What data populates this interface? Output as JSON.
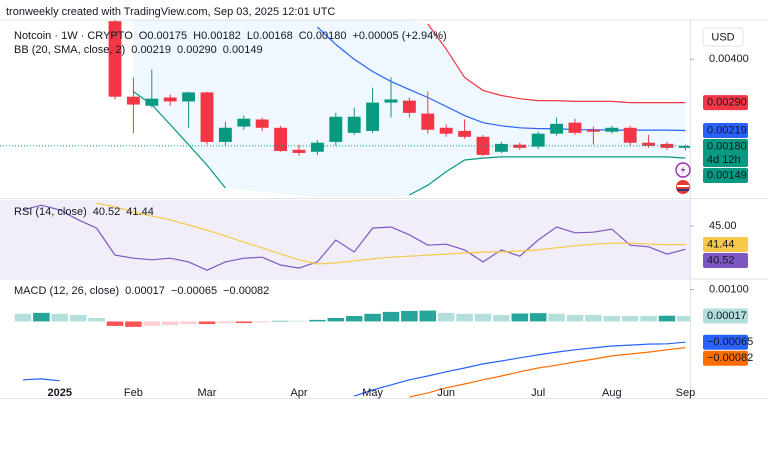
{
  "header": "tronweekly created with TradingView.com, Sep 03, 2025 12:01 UTC",
  "currency": "USD",
  "countdown": "4d 12h",
  "x_axis": {
    "categories": [
      null,
      null,
      null,
      null,
      null,
      null,
      null,
      null,
      null,
      null,
      null,
      null,
      null,
      null,
      null,
      null,
      null,
      null,
      null,
      null,
      null,
      null,
      null,
      null,
      null,
      null,
      null,
      null,
      null,
      null,
      null,
      null,
      null,
      null,
      null,
      null,
      null,
      null
    ],
    "xlim": [
      -0.25,
      37.25
    ],
    "xticks": [
      {
        "value": 3,
        "label": "2025"
      },
      {
        "value": 7,
        "label": "Feb"
      },
      {
        "value": 11,
        "label": "Mar"
      },
      {
        "value": 16,
        "label": "Apr"
      },
      {
        "value": 20,
        "label": "May"
      },
      {
        "value": 24,
        "label": "Jun"
      },
      {
        "value": 29,
        "label": "Jul"
      },
      {
        "value": 33,
        "label": "Aug"
      },
      {
        "value": 37,
        "label": "Sep"
      }
    ]
  },
  "chart_data": [
    {
      "type": "candlestick",
      "title": "Notcoin · 1W · CRYPTO",
      "ohlc_legend": [
        "O0.00175",
        "H0.00182",
        "L0.00168",
        "C0.00180",
        "+0.00005 (+2.94%)"
      ],
      "indicator": "BB (20, SMA, close, 2)",
      "up_color": "#089981",
      "down_color": "#f23645",
      "open": [
        null,
        null,
        null,
        null,
        null,
        null,
        0.00497,
        0.00305,
        0.00282,
        0.00303,
        0.00293,
        0.00316,
        0.0019,
        0.00229,
        0.00247,
        0.00226,
        0.0017,
        0.00165,
        0.0019,
        0.00213,
        0.00218,
        0.0029,
        0.00295,
        0.00262,
        0.00226,
        0.00218,
        0.00203,
        0.00165,
        0.00183,
        0.00178,
        0.00211,
        0.00239,
        0.00221,
        0.00216,
        0.00226,
        0.00188,
        0.00185,
        0.00175
      ],
      "high": [
        null,
        null,
        null,
        null,
        null,
        null,
        0.00508,
        0.00354,
        0.00374,
        0.00311,
        0.00318,
        0.00318,
        0.00241,
        0.00257,
        0.00252,
        0.00231,
        0.00183,
        0.00195,
        0.00264,
        0.00277,
        0.00328,
        0.00354,
        0.00303,
        0.00318,
        0.00234,
        0.00247,
        0.00208,
        0.0019,
        0.00188,
        0.00216,
        0.00252,
        0.00249,
        0.00229,
        0.00231,
        0.00231,
        0.00208,
        0.0019,
        0.00182
      ],
      "low": [
        null,
        null,
        null,
        null,
        null,
        null,
        0.00298,
        0.00213,
        0.00277,
        0.00282,
        0.00226,
        0.00183,
        0.0018,
        0.00221,
        0.00218,
        0.00165,
        0.00155,
        0.00157,
        0.0018,
        0.00208,
        0.00213,
        0.00252,
        0.00252,
        0.00211,
        0.00203,
        0.00198,
        0.00155,
        0.00162,
        0.0017,
        0.00172,
        0.00206,
        0.00208,
        0.00183,
        0.00211,
        0.0018,
        0.00175,
        0.0017,
        0.00168
      ],
      "close": [
        null,
        null,
        null,
        null,
        null,
        null,
        0.00305,
        0.00285,
        0.003,
        0.00293,
        0.00316,
        0.0019,
        0.00226,
        0.00249,
        0.00226,
        0.00167,
        0.00162,
        0.00188,
        0.00254,
        0.00254,
        0.0029,
        0.00298,
        0.00264,
        0.00221,
        0.00211,
        0.00203,
        0.00157,
        0.00185,
        0.00175,
        0.00211,
        0.00236,
        0.00213,
        0.00216,
        0.00226,
        0.00188,
        0.0018,
        0.00175,
        0.0018
      ],
      "close_label": "0.00180",
      "ylim": [
        0.0005,
        0.005
      ],
      "yticks": [
        {
          "value": 0.004,
          "label": "0.00400"
        }
      ],
      "series": [
        {
          "color": "#2962ff",
          "last_label": "0.00219",
          "values": [
            null,
            null,
            null,
            null,
            null,
            null,
            null,
            null,
            null,
            null,
            null,
            null,
            null,
            null,
            null,
            null,
            null,
            0.00482,
            0.00438,
            0.004,
            0.00369,
            0.00344,
            0.00323,
            0.00303,
            0.0028,
            0.00257,
            0.00239,
            0.00231,
            0.00226,
            0.00224,
            0.00224,
            0.00221,
            0.00221,
            0.0022,
            0.0022,
            0.0022,
            0.0022,
            0.00219
          ]
        },
        {
          "color": "#f23645",
          "last_label": "0.00290",
          "values": [
            null,
            null,
            null,
            null,
            null,
            null,
            null,
            null,
            null,
            null,
            null,
            null,
            null,
            null,
            null,
            null,
            null,
            null,
            null,
            null,
            null,
            null,
            null,
            0.0049,
            0.00426,
            0.00354,
            0.00321,
            0.00308,
            0.003,
            0.00295,
            0.00295,
            0.00293,
            0.00293,
            0.00293,
            0.0029,
            0.0029,
            0.0029,
            0.0029
          ]
        },
        {
          "color": "#089981",
          "last_label": "0.00149",
          "values": [
            null,
            null,
            null,
            null,
            null,
            null,
            null,
            0.00318,
            0.00285,
            0.00234,
            0.00183,
            0.00131,
            0.00073,
            null,
            null,
            null,
            null,
            null,
            null,
            null,
            null,
            null,
            0.00055,
            0.0008,
            0.00114,
            0.00144,
            0.00149,
            0.00152,
            0.00152,
            0.00152,
            0.00152,
            0.00152,
            0.00152,
            0.00152,
            0.00152,
            0.00152,
            0.00152,
            0.00149
          ]
        }
      ]
    },
    {
      "type": "line",
      "title": "RSI (14, close)",
      "ylim": [
        35,
        50
      ],
      "yticks": [
        {
          "value": 45,
          "label": "45.00"
        }
      ],
      "series": [
        {
          "color": "#7e57c2",
          "last_label": "40.52",
          "values": [
            null,
            48.1,
            49.0,
            48.1,
            46.2,
            44.6,
            39.4,
            38.8,
            38.5,
            38.8,
            38.1,
            36.5,
            38.1,
            38.8,
            39.0,
            37.5,
            36.9,
            38.1,
            42.3,
            40.0,
            44.6,
            44.8,
            43.3,
            41.3,
            41.5,
            40.4,
            38.1,
            40.4,
            39.2,
            42.3,
            44.8,
            43.7,
            43.8,
            44.4,
            41.3,
            41.0,
            39.6,
            40.52
          ]
        },
        {
          "color": "#f7c948",
          "last_label": "41.44",
          "values": [
            null,
            null,
            null,
            null,
            null,
            49.4,
            48.7,
            47.7,
            46.9,
            46.2,
            45.2,
            44.2,
            43.1,
            41.9,
            40.8,
            39.6,
            38.5,
            37.7,
            37.9,
            38.3,
            38.7,
            39.0,
            39.2,
            39.4,
            39.6,
            39.8,
            40.0,
            40.0,
            40.2,
            40.4,
            40.8,
            41.2,
            41.5,
            41.7,
            41.7,
            41.5,
            41.4,
            41.44
          ]
        }
      ]
    },
    {
      "type": "macd",
      "title": "MACD (12, 26, close)",
      "ylim": [
        -0.0024,
        0.0013
      ],
      "yticks": [
        {
          "value": 0.001,
          "label": "0.00100"
        }
      ],
      "histogram": {
        "color": "#b2dfdb",
        "colors": {
          "up_rising": "#26a69a",
          "up_falling": "#b2dfdb",
          "down_falling": "#ff5252",
          "down_rising": "#ffcdd2"
        },
        "last_label": "0.00017",
        "values": [
          null,
          0.00024,
          0.00027,
          0.00024,
          0.0002,
          0.00011,
          -0.00014,
          -0.00017,
          -0.00014,
          -0.00011,
          -8e-05,
          -8e-05,
          -5e-05,
          -5e-05,
          -3e-05,
          2e-05,
          2e-05,
          5e-05,
          0.00011,
          0.00017,
          0.00024,
          0.0003,
          0.00033,
          0.00034,
          0.00027,
          0.00024,
          0.00024,
          0.0002,
          0.00025,
          0.00026,
          0.00024,
          0.0002,
          0.0002,
          0.00017,
          0.00017,
          0.00017,
          0.00018,
          0.00017
        ]
      },
      "series": [
        {
          "color": "#2962ff",
          "last_label": "−0.00065",
          "values": [
            null,
            -0.00183,
            -0.0018,
            -0.00186,
            null,
            null,
            null,
            null,
            null,
            null,
            null,
            null,
            null,
            null,
            null,
            null,
            null,
            null,
            null,
            -0.00234,
            -0.00215,
            -0.00199,
            -0.00183,
            -0.00171,
            -0.00158,
            -0.00146,
            -0.00133,
            -0.00124,
            -0.00114,
            -0.00105,
            -0.00096,
            -0.00089,
            -0.00083,
            -0.00077,
            -0.00074,
            -0.00071,
            -0.0007,
            -0.00065
          ]
        },
        {
          "color": "#ff6d00",
          "last_label": "−0.00082",
          "values": [
            null,
            null,
            null,
            null,
            null,
            null,
            null,
            null,
            null,
            null,
            null,
            null,
            null,
            null,
            null,
            null,
            null,
            null,
            null,
            null,
            null,
            null,
            -0.00237,
            -0.00224,
            -0.00208,
            -0.00196,
            -0.00183,
            -0.00171,
            -0.00158,
            -0.00146,
            -0.00137,
            -0.00127,
            -0.00118,
            -0.00108,
            -0.00102,
            -0.00096,
            -0.00089,
            -0.00082
          ]
        }
      ]
    }
  ]
}
